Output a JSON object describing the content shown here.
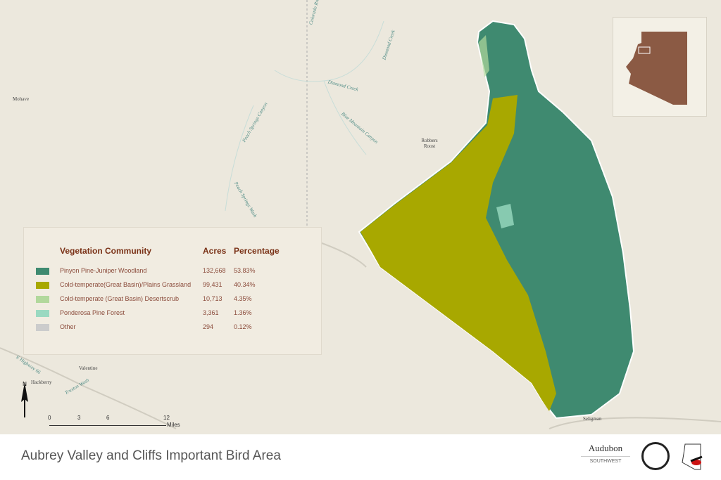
{
  "map": {
    "place_labels": [
      "Mohave",
      "Robbers Roost",
      "Valentine",
      "Hackberry",
      "Seligman"
    ],
    "water_labels": [
      "Colorado River",
      "Diamond Creek",
      "Diamond Creek",
      "Blue Mountain Canyon",
      "Peach Springs Canyon",
      "Peach Springs Wash",
      "Truxton Wash"
    ],
    "road_labels": [
      "E Highway 66"
    ],
    "colors": {
      "background": "#ece8dd",
      "boundary": "#ffffff",
      "inset_state": "#8b5a44"
    }
  },
  "legend": {
    "headers": {
      "community": "Vegetation Community",
      "acres": "Acres",
      "percentage": "Percentage"
    },
    "rows": [
      {
        "label": "Pinyon Pine-Juniper Woodland",
        "acres": "132,668",
        "percentage": "53.83%",
        "color": "#3f8a70"
      },
      {
        "label": "Cold-temperate(Great Basin)/Plains Grassland",
        "acres": "99,431",
        "percentage": "40.34%",
        "color": "#a8a800"
      },
      {
        "label": "Cold-temperate (Great Basin) Desertscrub",
        "acres": "10,713",
        "percentage": "4.35%",
        "color": "#b2d89c"
      },
      {
        "label": "Ponderosa Pine Forest",
        "acres": "3,361",
        "percentage": "1.36%",
        "color": "#9ad9c1"
      },
      {
        "label": "Other",
        "acres": "294",
        "percentage": "0.12%",
        "color": "#cccccc"
      }
    ]
  },
  "north_arrow": {
    "label": "N"
  },
  "scale_bar": {
    "ticks": [
      "0",
      "3",
      "6",
      "12"
    ],
    "unit": "Miles"
  },
  "footer": {
    "title": "Aubrey Valley and Cliffs Important Bird Area",
    "logos": [
      "Audubon",
      "SOUTHWEST",
      "ARIZONA GAME & FISH",
      "Arizona Important Bird Areas"
    ]
  }
}
